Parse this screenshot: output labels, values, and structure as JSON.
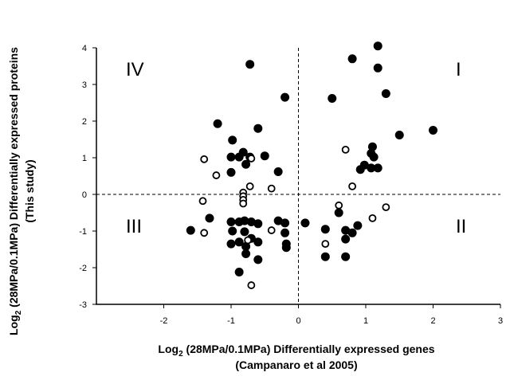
{
  "chart_data": {
    "type": "scatter",
    "xlabel_line1_prefix": "Log",
    "xlabel_line1_sub": "2",
    "xlabel_line1_rest": " (28MPa/0.1MPa) Differentially expressed genes",
    "xlabel_line2": "(Campanaro et al 2005)",
    "ylabel_line1_prefix": "Log",
    "ylabel_line1_sub": "2",
    "ylabel_line1_rest": " (28MPa/0.1MPa) Differentially expressed proteins",
    "ylabel_line2": "(This study)",
    "xlim": [
      -3,
      3
    ],
    "ylim": [
      -3,
      4
    ],
    "x_ticks": [
      "-2",
      "-1",
      "0",
      "1",
      "2",
      "3"
    ],
    "y_ticks": [
      "-3",
      "-2",
      "-1",
      "0",
      "1",
      "2",
      "3",
      "4"
    ],
    "reference_lines": {
      "x": 0,
      "y": 0,
      "style": "dashed"
    },
    "quadrant_labels": {
      "I": "I",
      "II": "II",
      "III": "III",
      "IV": "IV"
    },
    "grid": false,
    "legend": "none",
    "series": [
      {
        "marker": "filled-circle",
        "color": "#000000",
        "points": [
          [
            1.18,
            4.05
          ],
          [
            0.8,
            3.7
          ],
          [
            1.18,
            3.45
          ],
          [
            1.3,
            2.75
          ],
          [
            0.5,
            2.62
          ],
          [
            2.0,
            1.75
          ],
          [
            1.5,
            1.62
          ],
          [
            1.1,
            1.3
          ],
          [
            1.08,
            1.12
          ],
          [
            1.12,
            1.02
          ],
          [
            0.98,
            0.8
          ],
          [
            0.92,
            0.68
          ],
          [
            1.08,
            0.72
          ],
          [
            1.18,
            0.72
          ],
          [
            -0.72,
            3.55
          ],
          [
            -0.2,
            2.65
          ],
          [
            -1.2,
            1.93
          ],
          [
            -0.6,
            1.8
          ],
          [
            -0.98,
            1.48
          ],
          [
            -0.82,
            1.15
          ],
          [
            -1.0,
            1.02
          ],
          [
            -0.88,
            1.02
          ],
          [
            -0.72,
            1.02
          ],
          [
            -0.5,
            1.05
          ],
          [
            -0.3,
            0.62
          ],
          [
            -1.0,
            0.6
          ],
          [
            -0.78,
            0.82
          ],
          [
            -1.32,
            -0.65
          ],
          [
            -1.6,
            -0.98
          ],
          [
            -1.0,
            -0.75
          ],
          [
            -0.88,
            -0.75
          ],
          [
            -0.8,
            -0.72
          ],
          [
            -0.7,
            -0.75
          ],
          [
            -0.6,
            -0.8
          ],
          [
            -0.98,
            -1.0
          ],
          [
            -0.8,
            -1.02
          ],
          [
            -1.0,
            -1.35
          ],
          [
            -0.88,
            -1.3
          ],
          [
            -0.78,
            -1.42
          ],
          [
            -0.78,
            -1.62
          ],
          [
            -0.7,
            -1.2
          ],
          [
            -0.6,
            -1.3
          ],
          [
            -0.6,
            -1.78
          ],
          [
            -0.88,
            -2.12
          ],
          [
            -0.3,
            -0.72
          ],
          [
            -0.2,
            -0.78
          ],
          [
            -0.2,
            -1.05
          ],
          [
            -0.18,
            -1.35
          ],
          [
            -0.18,
            -1.45
          ],
          [
            0.1,
            -0.78
          ],
          [
            0.4,
            -0.95
          ],
          [
            0.4,
            -1.7
          ],
          [
            0.6,
            -0.5
          ],
          [
            0.7,
            -0.98
          ],
          [
            0.7,
            -1.7
          ],
          [
            0.88,
            -0.85
          ],
          [
            0.7,
            -1.22
          ],
          [
            0.8,
            -1.05
          ]
        ]
      },
      {
        "marker": "open-circle",
        "color": "#000000",
        "points": [
          [
            0.7,
            1.22
          ],
          [
            0.8,
            0.22
          ],
          [
            0.6,
            -0.3
          ],
          [
            0.4,
            -1.35
          ],
          [
            1.1,
            -0.65
          ],
          [
            1.3,
            -0.35
          ],
          [
            -1.4,
            0.96
          ],
          [
            -1.22,
            0.52
          ],
          [
            -0.7,
            0.98
          ],
          [
            -0.82,
            0.05
          ],
          [
            -0.82,
            -0.05
          ],
          [
            -0.82,
            -0.15
          ],
          [
            -0.82,
            -0.25
          ],
          [
            -0.72,
            0.22
          ],
          [
            -0.4,
            0.16
          ],
          [
            -1.42,
            -0.18
          ],
          [
            -1.4,
            -1.05
          ],
          [
            -0.4,
            -0.98
          ],
          [
            -0.7,
            -2.48
          ],
          [
            -0.75,
            -1.25
          ]
        ]
      }
    ]
  }
}
